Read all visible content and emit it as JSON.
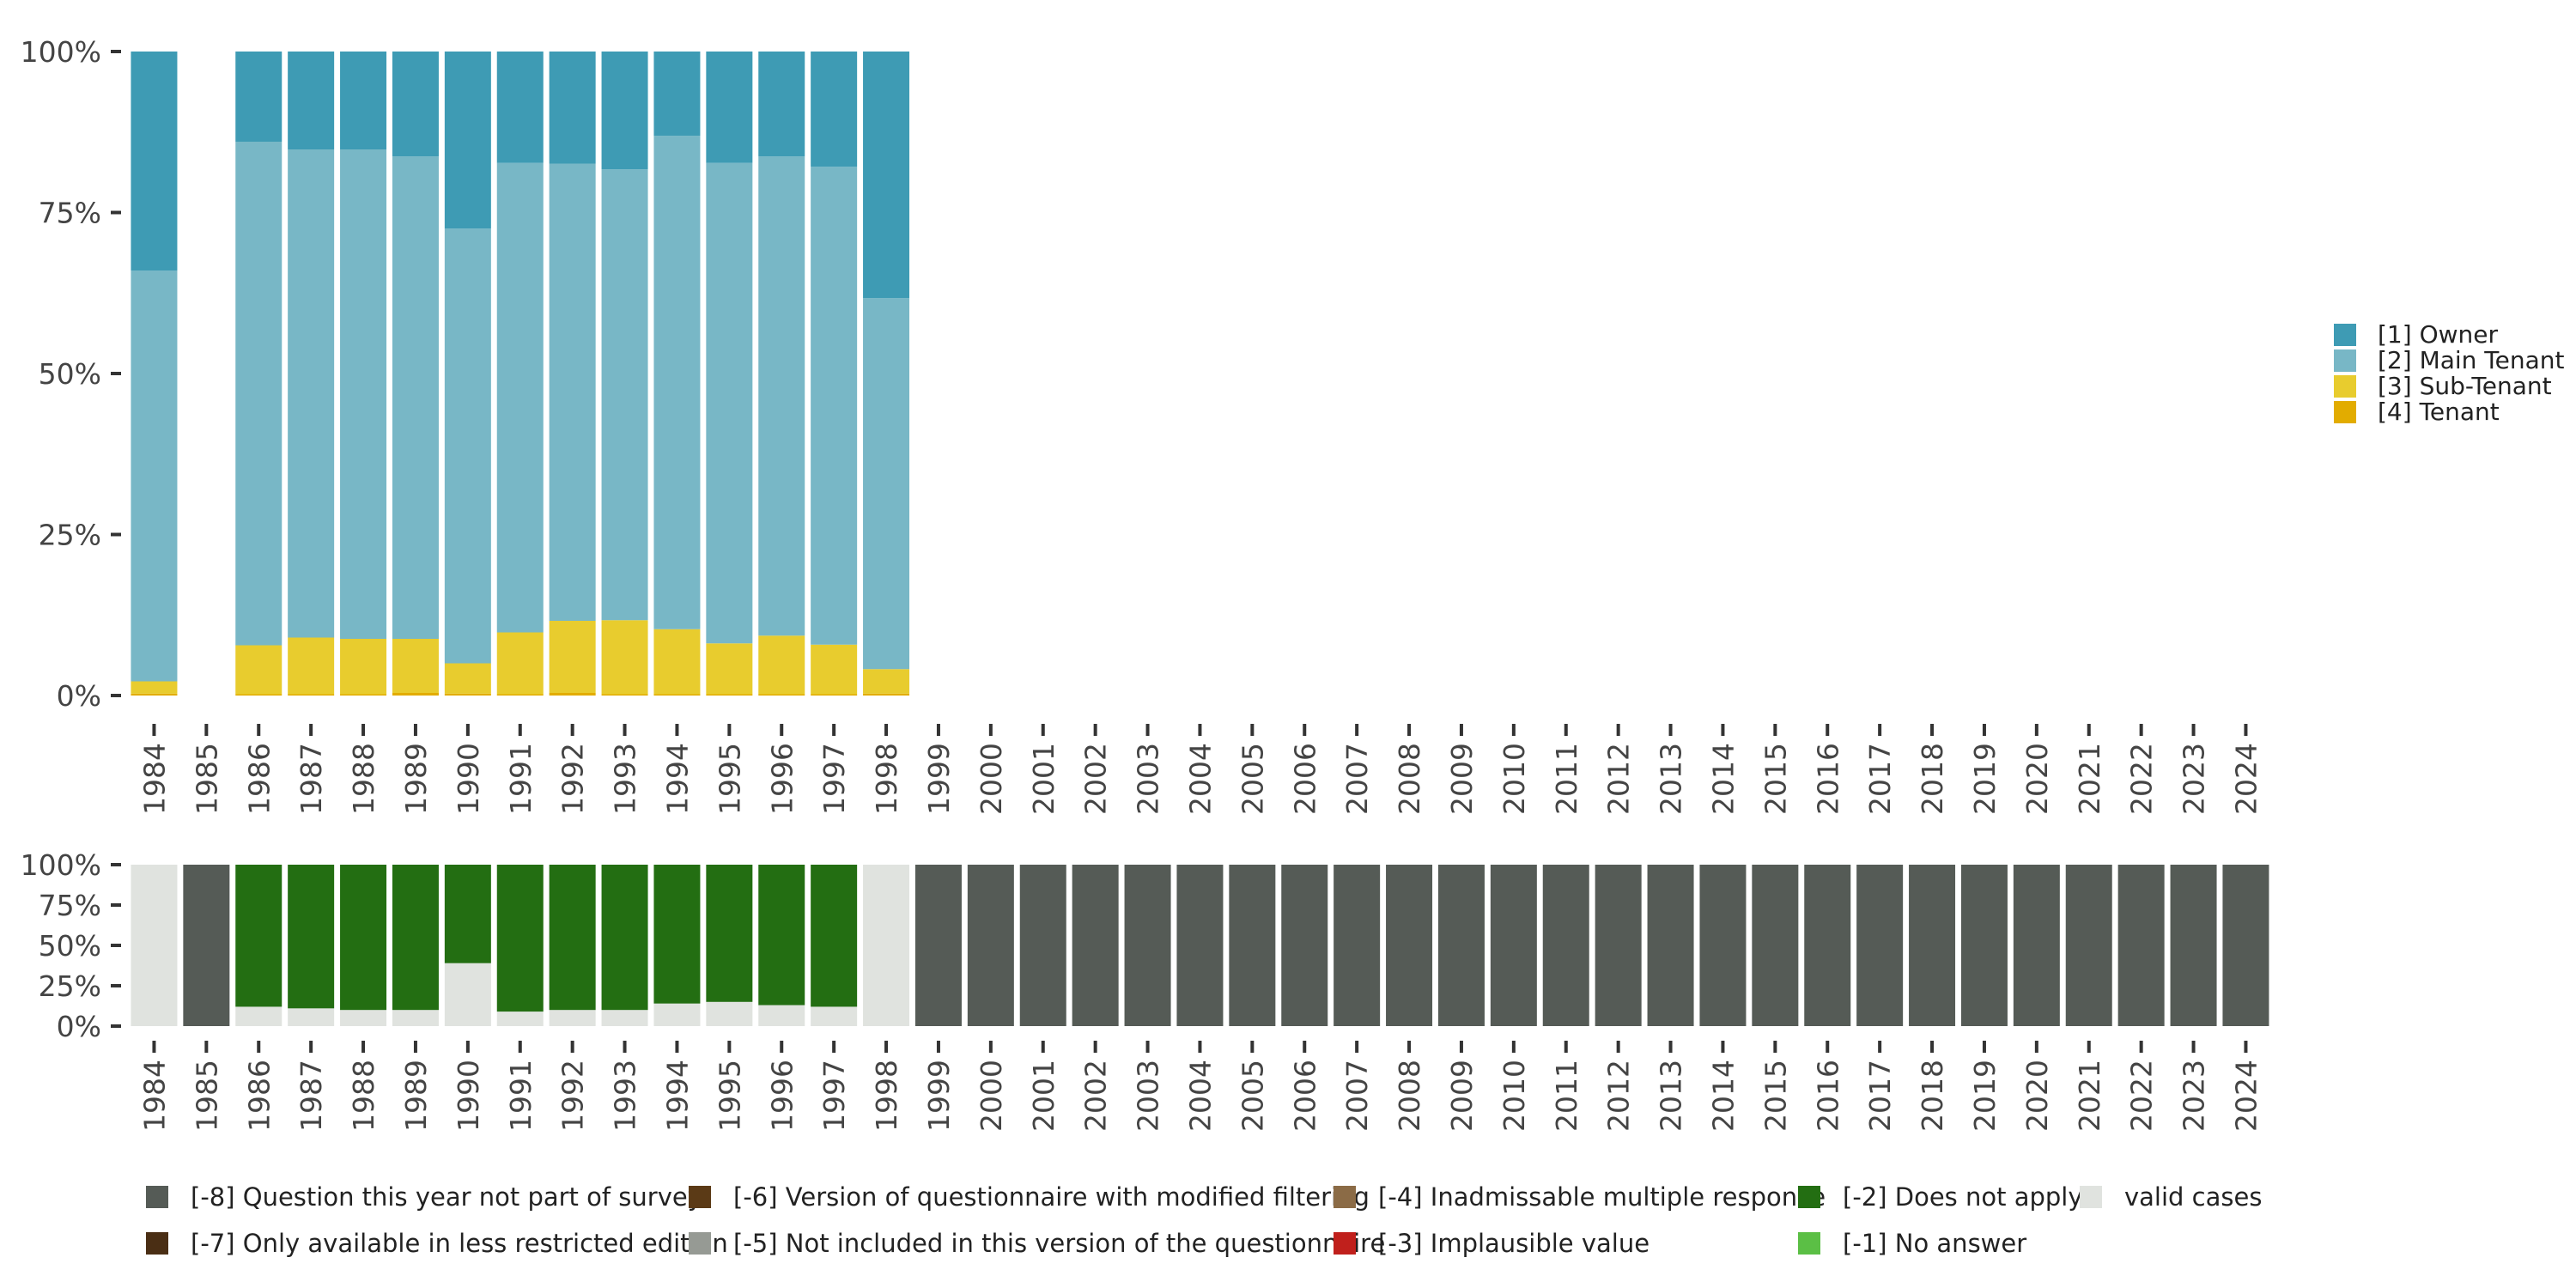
{
  "colors": {
    "owner": "#3e9bb4",
    "main_tenant": "#78b7c6",
    "sub_tenant": "#e8cc2e",
    "tenant": "#e2ac00",
    "missing_8": "#555b56",
    "missing_7": "#4a2e14",
    "missing_6": "#5b3a16",
    "missing_5": "#969a94",
    "missing_4": "#8b6b46",
    "missing_3": "#c0201c",
    "missing_2": "#236e12",
    "missing_1": "#5bbf45",
    "valid": "#e0e3df",
    "axis": "#333333"
  },
  "chart_data": [
    {
      "type": "bar",
      "stacked": true,
      "title": "",
      "xlabel": "",
      "ylabel": "",
      "ylim": [
        0,
        100
      ],
      "y_ticks": [
        "0%",
        "25%",
        "50%",
        "75%",
        "100%"
      ],
      "categories": [
        "1984",
        "1985",
        "1986",
        "1987",
        "1988",
        "1989",
        "1990",
        "1991",
        "1992",
        "1993",
        "1994",
        "1995",
        "1996",
        "1997",
        "1998",
        "1999",
        "2000",
        "2001",
        "2002",
        "2003",
        "2004",
        "2005",
        "2006",
        "2007",
        "2008",
        "2009",
        "2010",
        "2011",
        "2012",
        "2013",
        "2014",
        "2015",
        "2016",
        "2017",
        "2018",
        "2019",
        "2020",
        "2021",
        "2022",
        "2023",
        "2024"
      ],
      "series": [
        {
          "name": "[4] Tenant",
          "color_key": "tenant",
          "values": [
            0.3,
            null,
            0.2,
            0.2,
            0.2,
            0.4,
            0.3,
            0.2,
            0.4,
            0.2,
            0.2,
            0.2,
            0.2,
            0.2,
            0.3,
            null,
            null,
            null,
            null,
            null,
            null,
            null,
            null,
            null,
            null,
            null,
            null,
            null,
            null,
            null,
            null,
            null,
            null,
            null,
            null,
            null,
            null,
            null,
            null,
            null,
            null
          ]
        },
        {
          "name": "[3] Sub-Tenant",
          "color_key": "sub_tenant",
          "values": [
            1.9,
            null,
            7.6,
            8.8,
            8.6,
            8.4,
            4.7,
            9.6,
            11.2,
            11.5,
            10.1,
            7.9,
            9.1,
            7.7,
            3.8,
            null,
            null,
            null,
            null,
            null,
            null,
            null,
            null,
            null,
            null,
            null,
            null,
            null,
            null,
            null,
            null,
            null,
            null,
            null,
            null,
            null,
            null,
            null,
            null,
            null,
            null
          ]
        },
        {
          "name": "[2] Main Tenant",
          "color_key": "main_tenant",
          "values": [
            63.8,
            null,
            78.2,
            75.8,
            76.0,
            74.9,
            67.5,
            72.9,
            71.0,
            70.0,
            76.6,
            74.6,
            74.4,
            74.2,
            57.6,
            null,
            null,
            null,
            null,
            null,
            null,
            null,
            null,
            null,
            null,
            null,
            null,
            null,
            null,
            null,
            null,
            null,
            null,
            null,
            null,
            null,
            null,
            null,
            null,
            null,
            null
          ]
        },
        {
          "name": "[1] Owner",
          "color_key": "owner",
          "values": [
            34.0,
            null,
            14.0,
            15.2,
            15.2,
            16.3,
            27.5,
            17.3,
            17.4,
            18.3,
            13.1,
            17.3,
            16.3,
            17.9,
            38.3,
            null,
            null,
            null,
            null,
            null,
            null,
            null,
            null,
            null,
            null,
            null,
            null,
            null,
            null,
            null,
            null,
            null,
            null,
            null,
            null,
            null,
            null,
            null,
            null,
            null,
            null
          ]
        }
      ],
      "legend": {
        "position": "right",
        "items": [
          {
            "label": "[1] Owner",
            "color_key": "owner"
          },
          {
            "label": "[2] Main Tenant",
            "color_key": "main_tenant"
          },
          {
            "label": "[3] Sub-Tenant",
            "color_key": "sub_tenant"
          },
          {
            "label": "[4] Tenant",
            "color_key": "tenant"
          }
        ]
      }
    },
    {
      "type": "bar",
      "stacked": true,
      "title": "",
      "xlabel": "",
      "ylabel": "",
      "ylim": [
        0,
        100
      ],
      "y_ticks": [
        "0%",
        "25%",
        "50%",
        "75%",
        "100%"
      ],
      "categories": [
        "1984",
        "1985",
        "1986",
        "1987",
        "1988",
        "1989",
        "1990",
        "1991",
        "1992",
        "1993",
        "1994",
        "1995",
        "1996",
        "1997",
        "1998",
        "1999",
        "2000",
        "2001",
        "2002",
        "2003",
        "2004",
        "2005",
        "2006",
        "2007",
        "2008",
        "2009",
        "2010",
        "2011",
        "2012",
        "2013",
        "2014",
        "2015",
        "2016",
        "2017",
        "2018",
        "2019",
        "2020",
        "2021",
        "2022",
        "2023",
        "2024"
      ],
      "series": [
        {
          "name": "valid cases",
          "color_key": "valid",
          "values": [
            100,
            0,
            12,
            11,
            10,
            10,
            39,
            9,
            10,
            10,
            14,
            15,
            13,
            12,
            100,
            0,
            0,
            0,
            0,
            0,
            0,
            0,
            0,
            0,
            0,
            0,
            0,
            0,
            0,
            0,
            0,
            0,
            0,
            0,
            0,
            0,
            0,
            0,
            0,
            0,
            0
          ]
        },
        {
          "name": "[-2] Does not apply",
          "color_key": "missing_2",
          "values": [
            0,
            0,
            88,
            89,
            90,
            90,
            61,
            91,
            90,
            90,
            86,
            85,
            87,
            88,
            0,
            0,
            0,
            0,
            0,
            0,
            0,
            0,
            0,
            0,
            0,
            0,
            0,
            0,
            0,
            0,
            0,
            0,
            0,
            0,
            0,
            0,
            0,
            0,
            0,
            0,
            0
          ]
        },
        {
          "name": "[-8] Question this year not part of survey",
          "color_key": "missing_8",
          "values": [
            0,
            100,
            0,
            0,
            0,
            0,
            0,
            0,
            0,
            0,
            0,
            0,
            0,
            0,
            0,
            100,
            100,
            100,
            100,
            100,
            100,
            100,
            100,
            100,
            100,
            100,
            100,
            100,
            100,
            100,
            100,
            100,
            100,
            100,
            100,
            100,
            100,
            100,
            100,
            100,
            100
          ]
        }
      ],
      "legend": {
        "position": "bottom",
        "items": [
          {
            "label": "[-8] Question this year not part of survey",
            "color_key": "missing_8"
          },
          {
            "label": "[-7] Only available in less restricted edition",
            "color_key": "missing_7"
          },
          {
            "label": "[-6] Version of questionnaire with modified filtering",
            "color_key": "missing_6"
          },
          {
            "label": "[-5] Not included in this version of the questionnaire",
            "color_key": "missing_5"
          },
          {
            "label": "[-4] Inadmissable multiple response",
            "color_key": "missing_4"
          },
          {
            "label": "[-3] Implausible value",
            "color_key": "missing_3"
          },
          {
            "label": "[-2] Does not apply",
            "color_key": "missing_2"
          },
          {
            "label": "[-1] No answer",
            "color_key": "missing_1"
          },
          {
            "label": "valid cases",
            "color_key": "valid"
          }
        ]
      }
    }
  ]
}
